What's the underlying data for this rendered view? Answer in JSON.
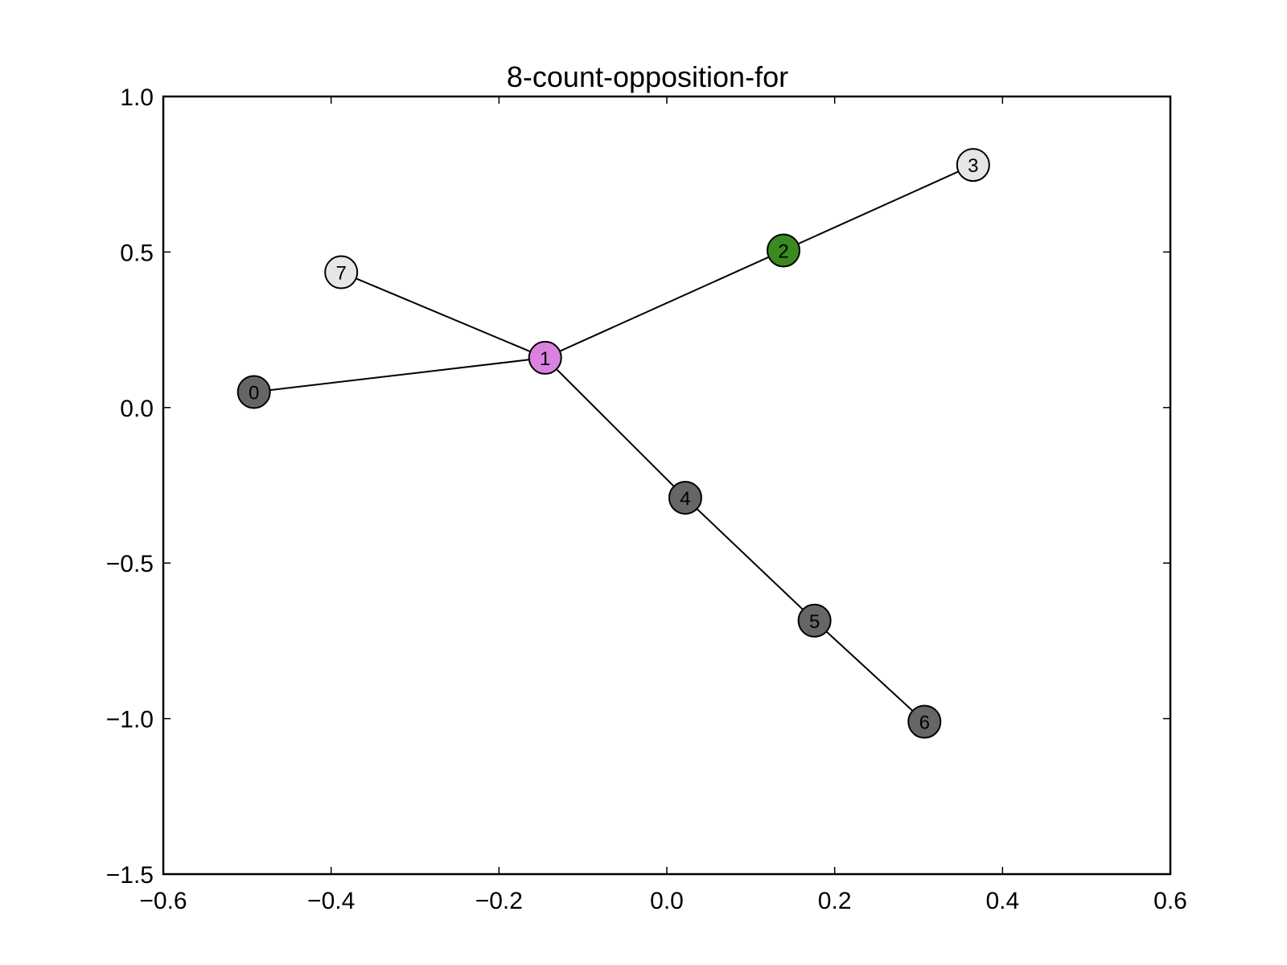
{
  "chart_data": {
    "type": "network",
    "title": "8-count-opposition-for",
    "xlabel": "",
    "ylabel": "",
    "xlim": [
      -0.6,
      0.6
    ],
    "ylim": [
      -1.5,
      1.0
    ],
    "xticks": [
      "−0.6",
      "−0.4",
      "−0.2",
      "0.0",
      "0.2",
      "0.4",
      "0.6"
    ],
    "yticks": [
      "1.0",
      "0.5",
      "0.0",
      "−0.5",
      "−1.0",
      "−1.5"
    ],
    "grid": false,
    "nodes": [
      {
        "id": "0",
        "x": -0.492,
        "y": 0.05,
        "color": "#666666"
      },
      {
        "id": "1",
        "x": -0.145,
        "y": 0.16,
        "color": "#da82e0"
      },
      {
        "id": "2",
        "x": 0.139,
        "y": 0.505,
        "color": "#3a8a20"
      },
      {
        "id": "3",
        "x": 0.365,
        "y": 0.78,
        "color": "#e6e6e6"
      },
      {
        "id": "4",
        "x": 0.022,
        "y": -0.29,
        "color": "#666666"
      },
      {
        "id": "5",
        "x": 0.176,
        "y": -0.685,
        "color": "#666666"
      },
      {
        "id": "6",
        "x": 0.307,
        "y": -1.01,
        "color": "#666666"
      },
      {
        "id": "7",
        "x": -0.388,
        "y": 0.435,
        "color": "#e6e6e6"
      }
    ],
    "edges": [
      [
        "0",
        "1"
      ],
      [
        "1",
        "7"
      ],
      [
        "1",
        "2"
      ],
      [
        "2",
        "3"
      ],
      [
        "1",
        "4"
      ],
      [
        "4",
        "5"
      ],
      [
        "5",
        "6"
      ]
    ]
  }
}
